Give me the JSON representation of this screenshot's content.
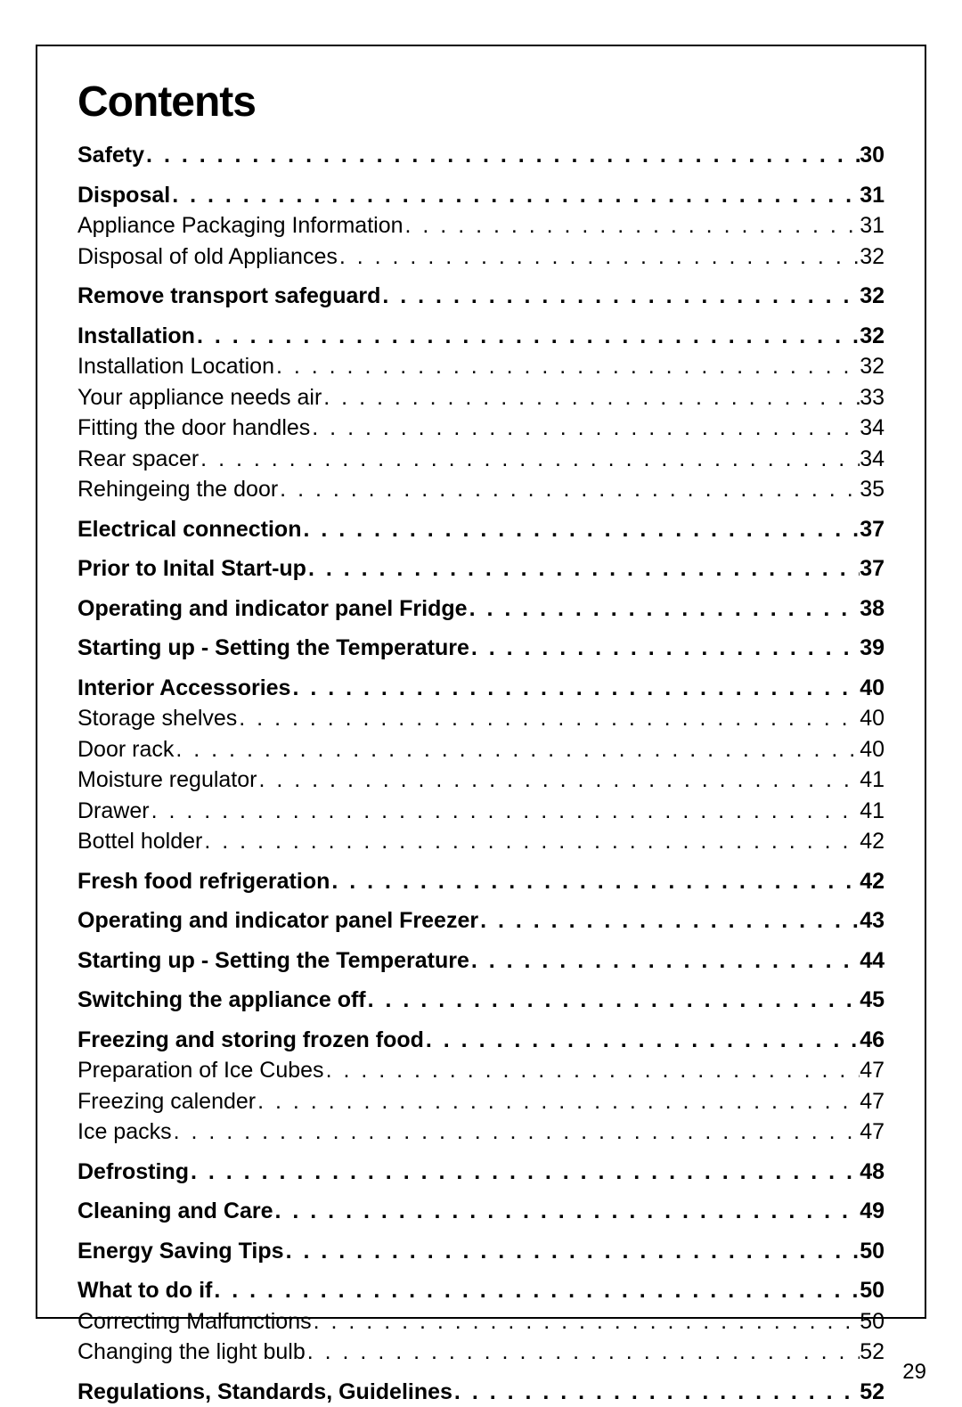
{
  "title": "Contents",
  "pageNumber": "29",
  "dots": ". . . . . . . . . . . . . . . . . . . . . . . . . . . . . . . . . . . . . . . . . . . . . . . . . . . . . . . . . . . . . . . . . . . . . . . . . . . . . . . . . . . . . . . . . . . . . . . . . . . .",
  "entries": [
    {
      "label": "Safety",
      "page": "30",
      "bold": true,
      "gapAfter": true
    },
    {
      "label": "Disposal",
      "page": "31",
      "bold": true
    },
    {
      "label": "Appliance Packaging Information",
      "page": "31",
      "bold": false
    },
    {
      "label": "Disposal of old Appliances",
      "page": "32",
      "bold": false,
      "gapAfter": true
    },
    {
      "label": "Remove transport safeguard",
      "page": "32",
      "bold": true,
      "gapAfter": true
    },
    {
      "label": "Installation",
      "page": "32",
      "bold": true
    },
    {
      "label": "Installation Location",
      "page": "32",
      "bold": false
    },
    {
      "label": "Your appliance needs air",
      "page": "33",
      "bold": false
    },
    {
      "label": "Fitting the door handles",
      "page": "34",
      "bold": false
    },
    {
      "label": "Rear spacer",
      "page": "34",
      "bold": false
    },
    {
      "label": "Rehingeing the door",
      "page": "35",
      "bold": false,
      "gapAfter": true
    },
    {
      "label": "Electrical connection",
      "page": "37",
      "bold": true,
      "gapAfter": true
    },
    {
      "label": "Prior to Inital Start-up",
      "page": "37",
      "bold": true,
      "gapAfter": true
    },
    {
      "label": "Operating and indicator panel Fridge",
      "page": "38",
      "bold": true,
      "gapAfter": true
    },
    {
      "label": "Starting up - Setting the Temperature",
      "page": "39",
      "bold": true,
      "gapAfter": true
    },
    {
      "label": "Interior Accessories",
      "page": "40",
      "bold": true
    },
    {
      "label": "Storage shelves",
      "page": "40",
      "bold": false
    },
    {
      "label": "Door rack",
      "page": "40",
      "bold": false
    },
    {
      "label": "Moisture regulator",
      "page": "41",
      "bold": false
    },
    {
      "label": "Drawer",
      "page": "41",
      "bold": false
    },
    {
      "label": "Bottel holder",
      "page": "42",
      "bold": false,
      "gapAfter": true
    },
    {
      "label": "Fresh food refrigeration",
      "page": "42",
      "bold": true,
      "gapAfter": true
    },
    {
      "label": "Operating and indicator panel Freezer",
      "page": "43",
      "bold": true,
      "gapAfter": true
    },
    {
      "label": "Starting up - Setting the Temperature",
      "page": "44",
      "bold": true,
      "gapAfter": true
    },
    {
      "label": "Switching the appliance off",
      "page": "45",
      "bold": true,
      "gapAfter": true
    },
    {
      "label": "Freezing and storing frozen food",
      "page": "46",
      "bold": true
    },
    {
      "label": "Preparation of Ice Cubes",
      "page": "47",
      "bold": false
    },
    {
      "label": "Freezing calender",
      "page": "47",
      "bold": false
    },
    {
      "label": "Ice packs",
      "page": "47",
      "bold": false,
      "gapAfter": true
    },
    {
      "label": "Defrosting",
      "page": "48",
      "bold": true,
      "gapAfter": true
    },
    {
      "label": "Cleaning and Care",
      "page": "49",
      "bold": true,
      "gapAfter": true
    },
    {
      "label": "Energy Saving Tips",
      "page": "50",
      "bold": true,
      "gapAfter": true
    },
    {
      "label": "What to do if",
      "page": "50",
      "bold": true
    },
    {
      "label": "Correcting Malfunctions",
      "page": "50",
      "bold": false
    },
    {
      "label": "Changing the light bulb",
      "page": "52",
      "bold": false,
      "gapAfter": true
    },
    {
      "label": "Regulations, Standards, Guidelines",
      "page": "52",
      "bold": true
    }
  ]
}
